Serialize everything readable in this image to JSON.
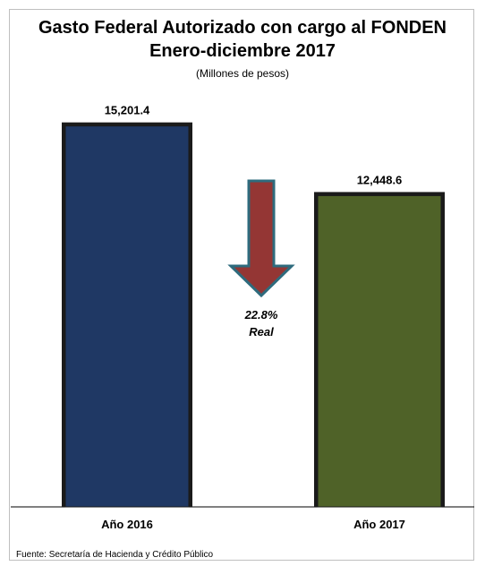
{
  "chart_data": {
    "type": "bar",
    "title": "Gasto Federal Autorizado con cargo al FONDEN",
    "subtitle": "Enero-diciembre 2017",
    "unit_note": "(Millones de pesos)",
    "categories": [
      "Año 2016",
      "Año 2017"
    ],
    "values": [
      15201.4,
      12448.6
    ],
    "value_labels": [
      "15,201.4",
      "12,448.6"
    ],
    "bar_colors": [
      "#1f3864",
      "#4f6228"
    ],
    "ylim": [
      0,
      16500
    ],
    "grid": false,
    "annotation": {
      "line1": "22.8%",
      "line2": "Real",
      "arrow": "down-arrow",
      "arrow_color": "#943634"
    }
  },
  "source": "Fuente: Secretaría de Hacienda y Crédito Público"
}
